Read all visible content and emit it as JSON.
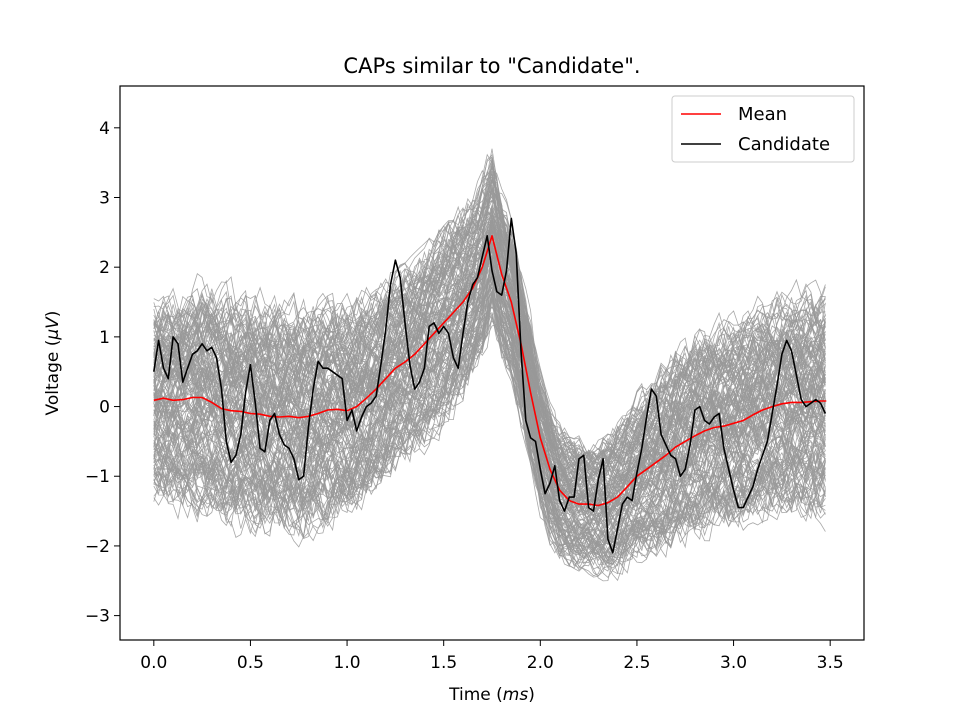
{
  "chart_data": {
    "type": "line",
    "title": "CAPs similar to \"Candidate\".",
    "xlabel": {
      "prefix": "Time (",
      "unit": "ms",
      "suffix": ")"
    },
    "ylabel": {
      "prefix": "Voltage (",
      "unit": "μV",
      "suffix": ")"
    },
    "xlim": [
      -0.175,
      3.675
    ],
    "ylim": [
      -3.35,
      4.6
    ],
    "xticks": [
      0.0,
      0.5,
      1.0,
      1.5,
      2.0,
      2.5,
      3.0,
      3.5
    ],
    "xtick_labels": [
      "0.0",
      "0.5",
      "1.0",
      "1.5",
      "2.0",
      "2.5",
      "3.0",
      "3.5"
    ],
    "yticks": [
      -3,
      -2,
      -1,
      0,
      1,
      2,
      3,
      4
    ],
    "ytick_labels": [
      "−3",
      "−2",
      "−1",
      "0",
      "1",
      "2",
      "3",
      "4"
    ],
    "grid": false,
    "legend_position": "top-right",
    "colors": {
      "mean": "#ff0000",
      "candidate": "#000000",
      "similar_caps": "#999999"
    },
    "similar_caps": {
      "description_color": "#999999",
      "envelope_upper": [
        [
          0.0,
          1.9
        ],
        [
          0.25,
          2.1
        ],
        [
          0.5,
          2.0
        ],
        [
          0.75,
          1.9
        ],
        [
          1.0,
          1.8
        ],
        [
          1.25,
          2.0
        ],
        [
          1.5,
          2.6
        ],
        [
          1.75,
          3.9
        ],
        [
          1.9,
          2.3
        ],
        [
          2.0,
          0.6
        ],
        [
          2.25,
          -0.6
        ],
        [
          2.5,
          0.3
        ],
        [
          2.75,
          1.2
        ],
        [
          3.0,
          1.5
        ],
        [
          3.25,
          1.9
        ],
        [
          3.47,
          1.8
        ]
      ],
      "envelope_lower": [
        [
          0.0,
          -1.6
        ],
        [
          0.25,
          -1.9
        ],
        [
          0.5,
          -2.0
        ],
        [
          0.75,
          -2.1
        ],
        [
          1.0,
          -2.0
        ],
        [
          1.25,
          -1.5
        ],
        [
          1.5,
          -0.9
        ],
        [
          1.75,
          0.9
        ],
        [
          1.9,
          -0.4
        ],
        [
          2.0,
          -1.8
        ],
        [
          2.25,
          -2.8
        ],
        [
          2.5,
          -2.6
        ],
        [
          2.75,
          -2.3
        ],
        [
          3.0,
          -2.1
        ],
        [
          3.25,
          -1.9
        ],
        [
          3.47,
          -2.1
        ]
      ]
    },
    "series": [
      {
        "name": "Mean",
        "x": [
          0.0,
          0.05,
          0.1,
          0.15,
          0.2,
          0.25,
          0.3,
          0.35,
          0.4,
          0.45,
          0.5,
          0.55,
          0.6,
          0.65,
          0.7,
          0.75,
          0.8,
          0.85,
          0.9,
          0.95,
          1.0,
          1.05,
          1.1,
          1.15,
          1.2,
          1.25,
          1.3,
          1.35,
          1.4,
          1.45,
          1.5,
          1.55,
          1.6,
          1.65,
          1.7,
          1.75,
          1.8,
          1.85,
          1.9,
          1.95,
          2.0,
          2.05,
          2.1,
          2.15,
          2.2,
          2.25,
          2.3,
          2.35,
          2.4,
          2.45,
          2.5,
          2.55,
          2.6,
          2.65,
          2.7,
          2.75,
          2.8,
          2.85,
          2.9,
          2.95,
          3.0,
          3.05,
          3.1,
          3.15,
          3.2,
          3.25,
          3.3,
          3.35,
          3.4,
          3.45,
          3.48
        ],
        "y": [
          0.09,
          0.12,
          0.09,
          0.1,
          0.13,
          0.13,
          0.06,
          -0.03,
          -0.06,
          -0.07,
          -0.1,
          -0.11,
          -0.14,
          -0.15,
          -0.14,
          -0.16,
          -0.14,
          -0.1,
          -0.05,
          -0.04,
          -0.06,
          0.0,
          0.12,
          0.25,
          0.4,
          0.55,
          0.64,
          0.75,
          0.9,
          1.05,
          1.2,
          1.35,
          1.5,
          1.7,
          2.0,
          2.45,
          1.9,
          1.5,
          0.9,
          0.2,
          -0.45,
          -0.9,
          -1.2,
          -1.35,
          -1.4,
          -1.4,
          -1.42,
          -1.38,
          -1.3,
          -1.15,
          -1.0,
          -0.9,
          -0.8,
          -0.7,
          -0.58,
          -0.5,
          -0.42,
          -0.35,
          -0.3,
          -0.28,
          -0.24,
          -0.2,
          -0.12,
          -0.05,
          0.0,
          0.04,
          0.06,
          0.06,
          0.07,
          0.08,
          0.08
        ]
      },
      {
        "name": "Candidate",
        "x": [
          0.0,
          0.025,
          0.05,
          0.075,
          0.1,
          0.125,
          0.15,
          0.175,
          0.2,
          0.225,
          0.25,
          0.275,
          0.3,
          0.325,
          0.35,
          0.375,
          0.4,
          0.425,
          0.45,
          0.475,
          0.5,
          0.525,
          0.55,
          0.575,
          0.6,
          0.625,
          0.65,
          0.675,
          0.7,
          0.725,
          0.75,
          0.775,
          0.8,
          0.825,
          0.85,
          0.875,
          0.9,
          0.925,
          0.95,
          0.975,
          1.0,
          1.025,
          1.05,
          1.075,
          1.1,
          1.125,
          1.15,
          1.175,
          1.2,
          1.225,
          1.25,
          1.275,
          1.3,
          1.325,
          1.35,
          1.375,
          1.4,
          1.425,
          1.45,
          1.475,
          1.5,
          1.525,
          1.55,
          1.575,
          1.6,
          1.625,
          1.65,
          1.675,
          1.7,
          1.725,
          1.75,
          1.775,
          1.8,
          1.825,
          1.85,
          1.875,
          1.9,
          1.925,
          1.95,
          1.975,
          2.0,
          2.025,
          2.05,
          2.075,
          2.1,
          2.125,
          2.15,
          2.175,
          2.2,
          2.225,
          2.25,
          2.275,
          2.3,
          2.325,
          2.35,
          2.375,
          2.4,
          2.425,
          2.45,
          2.475,
          2.5,
          2.525,
          2.55,
          2.575,
          2.6,
          2.625,
          2.65,
          2.675,
          2.7,
          2.725,
          2.75,
          2.775,
          2.8,
          2.825,
          2.85,
          2.875,
          2.9,
          2.925,
          2.95,
          2.975,
          3.0,
          3.025,
          3.05,
          3.075,
          3.1,
          3.125,
          3.15,
          3.175,
          3.2,
          3.225,
          3.25,
          3.275,
          3.3,
          3.325,
          3.35,
          3.375,
          3.4,
          3.425,
          3.45,
          3.475
        ],
        "y": [
          0.5,
          0.95,
          0.55,
          0.4,
          1.0,
          0.9,
          0.35,
          0.55,
          0.75,
          0.8,
          0.9,
          0.8,
          0.85,
          0.7,
          0.25,
          -0.5,
          -0.8,
          -0.7,
          -0.4,
          0.2,
          0.6,
          0.05,
          -0.6,
          -0.65,
          -0.2,
          -0.1,
          -0.4,
          -0.55,
          -0.6,
          -0.75,
          -1.05,
          -1.0,
          -0.3,
          0.25,
          0.65,
          0.55,
          0.55,
          0.5,
          0.45,
          0.4,
          -0.2,
          -0.05,
          -0.35,
          -0.15,
          0.0,
          0.05,
          0.15,
          0.6,
          1.1,
          1.75,
          2.1,
          1.85,
          1.2,
          0.6,
          0.25,
          0.35,
          0.55,
          1.15,
          1.2,
          1.05,
          1.15,
          1.05,
          0.7,
          0.55,
          1.05,
          1.5,
          1.75,
          1.85,
          2.15,
          2.45,
          1.95,
          1.65,
          1.6,
          1.95,
          2.7,
          2.2,
          0.8,
          -0.2,
          -0.45,
          -0.5,
          -0.9,
          -1.25,
          -1.1,
          -0.85,
          -1.35,
          -1.5,
          -1.3,
          -1.3,
          -0.75,
          -0.7,
          -1.45,
          -1.5,
          -1.05,
          -0.75,
          -1.9,
          -2.1,
          -1.75,
          -1.4,
          -1.3,
          -1.35,
          -0.95,
          -0.6,
          -0.15,
          0.25,
          0.15,
          -0.4,
          -0.55,
          -0.7,
          -0.75,
          -1.0,
          -0.9,
          -0.55,
          -0.05,
          0.0,
          -0.2,
          -0.25,
          -0.15,
          -0.1,
          -0.6,
          -0.9,
          -1.2,
          -1.45,
          -1.45,
          -1.3,
          -1.15,
          -0.9,
          -0.7,
          -0.5,
          -0.1,
          0.3,
          0.75,
          0.95,
          0.8,
          0.45,
          0.1,
          0.0,
          0.05,
          0.1,
          0.05,
          -0.1
        ]
      }
    ]
  }
}
